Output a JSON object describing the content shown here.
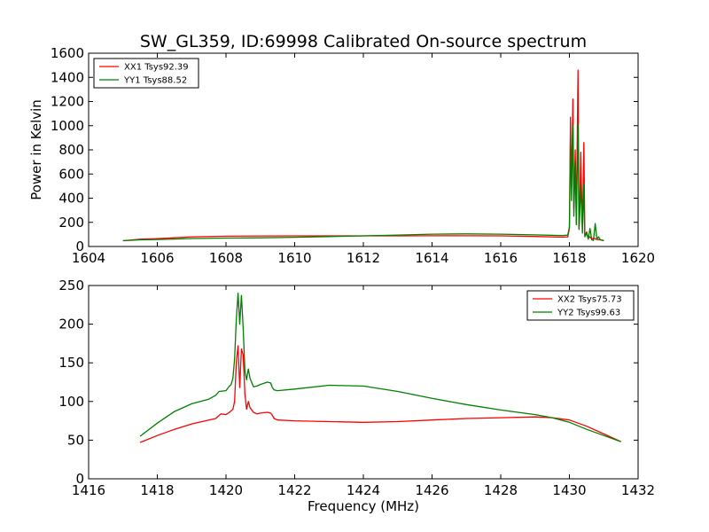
{
  "chart_data": [
    {
      "type": "line",
      "title": "SW_GL359, ID:69998 Calibrated On-source spectrum",
      "xlabel": "",
      "ylabel": "Power in Kelvin",
      "xlim": [
        1604,
        1620
      ],
      "ylim": [
        0,
        1600
      ],
      "xticks": [
        1604,
        1606,
        1608,
        1610,
        1612,
        1614,
        1616,
        1618,
        1620
      ],
      "yticks": [
        0,
        200,
        400,
        600,
        800,
        1000,
        1200,
        1400,
        1600
      ],
      "grid": false,
      "legend_position": "top-left",
      "series": [
        {
          "name": "XX1 Tsys92.39",
          "color": "#ff0000",
          "x": [
            1605.0,
            1605.5,
            1606.0,
            1606.5,
            1607.0,
            1608.0,
            1609.0,
            1610.0,
            1611.0,
            1612.0,
            1613.0,
            1614.0,
            1615.0,
            1616.0,
            1617.0,
            1617.8,
            1617.95,
            1618.0,
            1618.03,
            1618.06,
            1618.1,
            1618.13,
            1618.17,
            1618.2,
            1618.25,
            1618.28,
            1618.3,
            1618.33,
            1618.38,
            1618.42,
            1618.45,
            1618.5,
            1618.55,
            1618.6,
            1618.65,
            1618.7,
            1618.8,
            1618.9,
            1619.0
          ],
          "y": [
            48,
            60,
            65,
            72,
            80,
            85,
            87,
            88,
            88,
            88,
            88,
            89,
            89,
            88,
            83,
            77,
            80,
            150,
            1070,
            450,
            1220,
            320,
            800,
            200,
            1460,
            150,
            300,
            780,
            120,
            860,
            90,
            120,
            70,
            80,
            60,
            70,
            58,
            55,
            50
          ]
        },
        {
          "name": "YY1 Tsys88.52",
          "color": "#008000",
          "x": [
            1605.0,
            1605.5,
            1606.0,
            1606.5,
            1607.0,
            1608.0,
            1609.0,
            1610.0,
            1611.0,
            1612.0,
            1613.0,
            1614.0,
            1615.0,
            1616.0,
            1617.0,
            1617.8,
            1617.95,
            1618.0,
            1618.03,
            1618.06,
            1618.1,
            1618.13,
            1618.17,
            1618.2,
            1618.25,
            1618.28,
            1618.3,
            1618.33,
            1618.38,
            1618.42,
            1618.45,
            1618.5,
            1618.55,
            1618.6,
            1618.65,
            1618.7,
            1618.75,
            1618.8,
            1618.85,
            1618.9,
            1619.0
          ],
          "y": [
            48,
            55,
            58,
            62,
            66,
            70,
            72,
            76,
            82,
            88,
            95,
            102,
            104,
            102,
            96,
            90,
            95,
            160,
            920,
            380,
            1000,
            250,
            700,
            180,
            1010,
            140,
            250,
            520,
            110,
            520,
            80,
            110,
            60,
            150,
            55,
            50,
            190,
            60,
            80,
            55,
            48
          ]
        }
      ]
    },
    {
      "type": "line",
      "title": "",
      "xlabel": "Frequency (MHz)",
      "ylabel": "",
      "xlim": [
        1416,
        1432
      ],
      "ylim": [
        0,
        250
      ],
      "xticks": [
        1416,
        1418,
        1420,
        1422,
        1424,
        1426,
        1428,
        1430,
        1432
      ],
      "yticks": [
        0,
        50,
        100,
        150,
        200,
        250
      ],
      "grid": false,
      "legend_position": "top-right",
      "series": [
        {
          "name": "XX2 Tsys75.73",
          "color": "#ff0000",
          "x": [
            1417.5,
            1418.0,
            1418.5,
            1419.0,
            1419.5,
            1419.7,
            1419.85,
            1420.0,
            1420.1,
            1420.15,
            1420.2,
            1420.25,
            1420.3,
            1420.35,
            1420.4,
            1420.45,
            1420.5,
            1420.55,
            1420.6,
            1420.65,
            1420.7,
            1420.8,
            1420.9,
            1421.0,
            1421.2,
            1421.3,
            1421.35,
            1421.4,
            1421.5,
            1422.0,
            1423.0,
            1424.0,
            1425.0,
            1426.0,
            1427.0,
            1428.0,
            1429.0,
            1429.5,
            1430.0,
            1430.5,
            1431.0,
            1431.5
          ],
          "y": [
            47,
            56,
            64,
            71,
            76,
            78,
            84,
            83,
            86,
            88,
            90,
            100,
            150,
            172,
            118,
            168,
            160,
            110,
            90,
            100,
            92,
            86,
            84,
            85,
            86,
            85,
            82,
            78,
            76,
            75,
            74,
            73,
            74,
            76,
            78,
            79,
            80,
            79,
            76,
            68,
            58,
            48
          ]
        },
        {
          "name": "YY2 Tsys99.63",
          "color": "#008000",
          "x": [
            1417.5,
            1418.0,
            1418.5,
            1419.0,
            1419.5,
            1419.7,
            1419.8,
            1420.0,
            1420.1,
            1420.15,
            1420.2,
            1420.25,
            1420.3,
            1420.35,
            1420.4,
            1420.45,
            1420.5,
            1420.55,
            1420.6,
            1420.65,
            1420.7,
            1420.8,
            1420.9,
            1421.0,
            1421.2,
            1421.3,
            1421.35,
            1421.4,
            1421.5,
            1422.0,
            1423.0,
            1424.0,
            1425.0,
            1426.0,
            1427.0,
            1428.0,
            1429.0,
            1429.5,
            1430.0,
            1430.5,
            1431.0,
            1431.5
          ],
          "y": [
            55,
            72,
            87,
            97,
            103,
            108,
            113,
            114,
            120,
            122,
            130,
            155,
            205,
            240,
            200,
            237,
            195,
            140,
            128,
            142,
            130,
            119,
            120,
            122,
            125,
            124,
            118,
            115,
            114,
            116,
            121,
            120,
            113,
            104,
            96,
            89,
            83,
            79,
            73,
            64,
            56,
            48
          ]
        }
      ]
    }
  ]
}
